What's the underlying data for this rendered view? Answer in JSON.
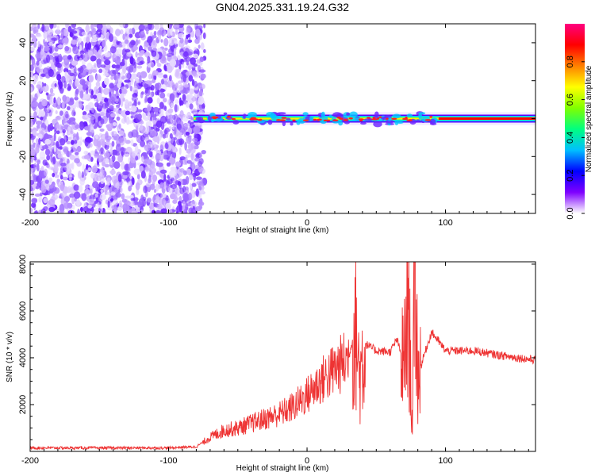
{
  "title": "GN04.2025.331.19.24.G32",
  "chart_data": [
    {
      "type": "heatmap",
      "title": "GN04.2025.331.19.24.G32",
      "xlabel": "Height of straight line (km)",
      "ylabel": "Frequency (Hz)",
      "xlim": [
        -200,
        165
      ],
      "ylim": [
        -50,
        50
      ],
      "xticks": [
        -200,
        -100,
        0,
        100
      ],
      "yticks": [
        -40,
        -20,
        0,
        20,
        40
      ],
      "noise_region_x": [
        -200,
        -78
      ],
      "signal_line_x": [
        -82,
        165
      ],
      "signal_frequency_hz": 0,
      "colorbar": {
        "label": "Normalized spectral amplitude",
        "range": [
          0.0,
          1.0
        ],
        "ticks": [
          "0.0",
          "0.2",
          "0.4",
          "0.6",
          "0.8"
        ],
        "colors": [
          "#ffffff",
          "#7f00ff",
          "#0000ff",
          "#00bfff",
          "#00ff80",
          "#80ff00",
          "#ffff00",
          "#ff8000",
          "#ff0000",
          "#ff0080"
        ]
      }
    },
    {
      "type": "line",
      "xlabel": "Height of straight line (km)",
      "ylabel": "SNR (10 * v/v)",
      "xlim": [
        -200,
        165
      ],
      "ylim": [
        0,
        8100
      ],
      "xticks": [
        -200,
        -100,
        0,
        100
      ],
      "yticks": [
        2000,
        4000,
        6000,
        8000
      ],
      "color": "#ee3333",
      "series": [
        {
          "name": "SNR",
          "x": [
            -200,
            -150,
            -100,
            -80,
            -70,
            -60,
            -50,
            -40,
            -30,
            -20,
            -10,
            0,
            10,
            20,
            30,
            35,
            38,
            42,
            50,
            60,
            65,
            70,
            73,
            76,
            78,
            80,
            85,
            90,
            100,
            120,
            140,
            165
          ],
          "y": [
            150,
            150,
            150,
            200,
            600,
            900,
            1000,
            1200,
            1400,
            1600,
            1900,
            2400,
            3000,
            3500,
            4000,
            5300,
            3200,
            4600,
            4300,
            4250,
            4800,
            3600,
            6700,
            1100,
            8000,
            3200,
            4200,
            5100,
            4300,
            4300,
            4100,
            3900
          ]
        }
      ]
    }
  ]
}
